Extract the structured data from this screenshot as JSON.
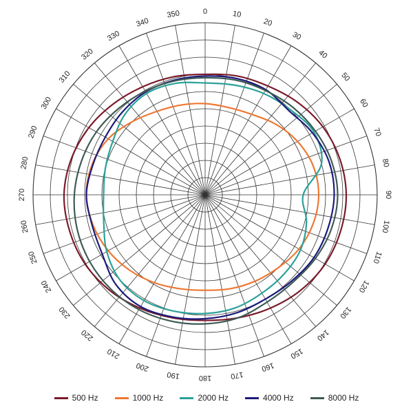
{
  "chart_data": {
    "type": "polar-line",
    "title": "",
    "angle_direction": "clockwise",
    "zero_at": "top",
    "angle_labels": [
      "0",
      "10",
      "20",
      "30",
      "40",
      "50",
      "60",
      "70",
      "80",
      "90",
      "100",
      "110",
      "120",
      "130",
      "140",
      "150",
      "160",
      "170",
      "180",
      "190",
      "200",
      "210",
      "220",
      "230",
      "240",
      "250",
      "260",
      "270",
      "280",
      "290",
      "300",
      "310",
      "320",
      "330",
      "340",
      "350"
    ],
    "radial_rings": 10,
    "radial_range": [
      0,
      10
    ],
    "grid": true,
    "legend_position": "bottom",
    "angles": [
      0,
      15,
      30,
      45,
      60,
      75,
      90,
      105,
      120,
      135,
      150,
      165,
      180,
      195,
      210,
      225,
      240,
      255,
      270,
      285,
      300,
      315,
      330,
      345
    ],
    "series": [
      {
        "name": "500 Hz",
        "color": "#7a1a2a",
        "values": [
          7.0,
          7.15,
          7.3,
          7.6,
          7.9,
          8.1,
          8.2,
          8.15,
          8.05,
          7.85,
          7.6,
          7.4,
          7.3,
          7.4,
          7.6,
          7.85,
          8.05,
          8.15,
          8.2,
          8.05,
          7.8,
          7.5,
          7.25,
          7.1
        ]
      },
      {
        "name": "1000 Hz",
        "color": "#ee7733",
        "values": [
          5.3,
          5.25,
          5.4,
          5.8,
          6.2,
          6.5,
          6.6,
          6.5,
          6.3,
          6.0,
          5.8,
          5.65,
          5.55,
          5.65,
          5.9,
          6.2,
          6.5,
          6.75,
          6.9,
          6.8,
          6.5,
          6.0,
          5.6,
          5.4
        ]
      },
      {
        "name": "2000 Hz",
        "color": "#2aa198",
        "values": [
          6.5,
          6.6,
          6.8,
          7.0,
          7.3,
          7.0,
          5.7,
          6.1,
          6.4,
          6.5,
          6.6,
          6.8,
          6.9,
          7.0,
          7.1,
          7.0,
          6.6,
          6.1,
          5.9,
          6.0,
          6.2,
          6.6,
          6.8,
          6.7
        ]
      },
      {
        "name": "4000 Hz",
        "color": "#1c1a7a",
        "values": [
          6.9,
          7.0,
          7.05,
          6.9,
          7.2,
          7.45,
          7.5,
          7.4,
          7.3,
          7.1,
          7.0,
          7.1,
          7.2,
          7.35,
          7.5,
          7.35,
          6.9,
          6.8,
          6.9,
          6.75,
          6.7,
          6.8,
          6.9,
          6.9
        ]
      },
      {
        "name": "8000 Hz",
        "color": "#3e5a55",
        "values": [
          6.8,
          6.9,
          7.0,
          7.2,
          7.4,
          7.6,
          7.7,
          7.6,
          7.4,
          7.2,
          7.2,
          7.4,
          7.5,
          7.6,
          7.7,
          7.75,
          7.75,
          7.7,
          7.6,
          7.45,
          7.3,
          7.1,
          6.95,
          6.85
        ]
      }
    ]
  }
}
